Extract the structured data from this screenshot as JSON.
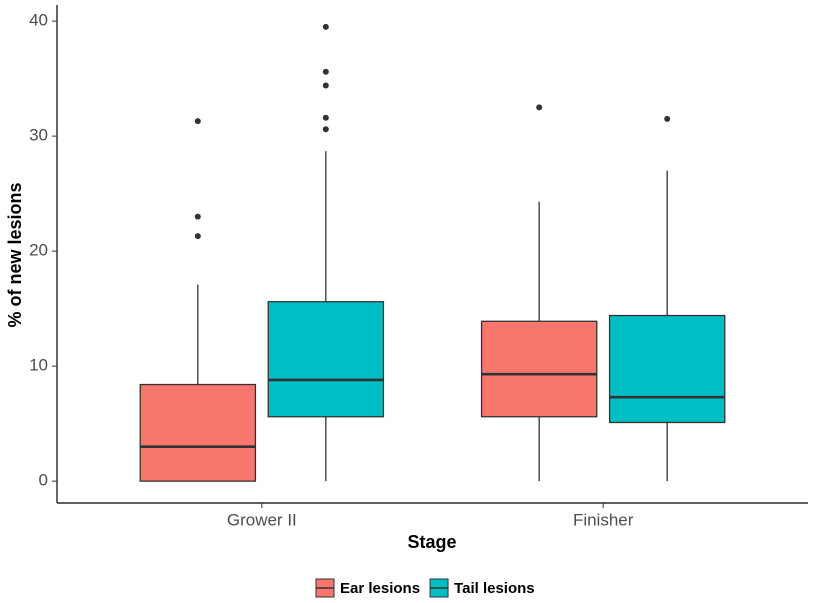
{
  "chart_data": {
    "type": "boxplot",
    "x_label": "Stage",
    "y_label": "% of new lesions",
    "categories": [
      "Grower II",
      "Finisher"
    ],
    "ylim": [
      -1.9,
      41.4
    ],
    "yticks": [
      0,
      10,
      20,
      30,
      40
    ],
    "grid": false,
    "legend_position": "bottom",
    "series": [
      {
        "name": "Ear lesions",
        "color": "#f8766d",
        "values": [
          {
            "min": 0,
            "q1": 0,
            "median": 3.0,
            "q3": 8.4,
            "max": 17.1,
            "outliers": [
              21.3,
              23.0,
              31.3
            ]
          },
          {
            "min": 0,
            "q1": 5.6,
            "median": 9.3,
            "q3": 13.9,
            "max": 24.3,
            "outliers": [
              32.5
            ]
          }
        ]
      },
      {
        "name": "Tail lesions",
        "color": "#00bfc4",
        "values": [
          {
            "min": 0,
            "q1": 5.6,
            "median": 8.8,
            "q3": 15.6,
            "max": 28.7,
            "outliers": [
              30.6,
              31.6,
              34.4,
              35.6,
              39.5
            ]
          },
          {
            "min": 0,
            "q1": 5.1,
            "median": 7.3,
            "q3": 14.4,
            "max": 27.0,
            "outliers": [
              31.5
            ]
          }
        ]
      }
    ]
  }
}
